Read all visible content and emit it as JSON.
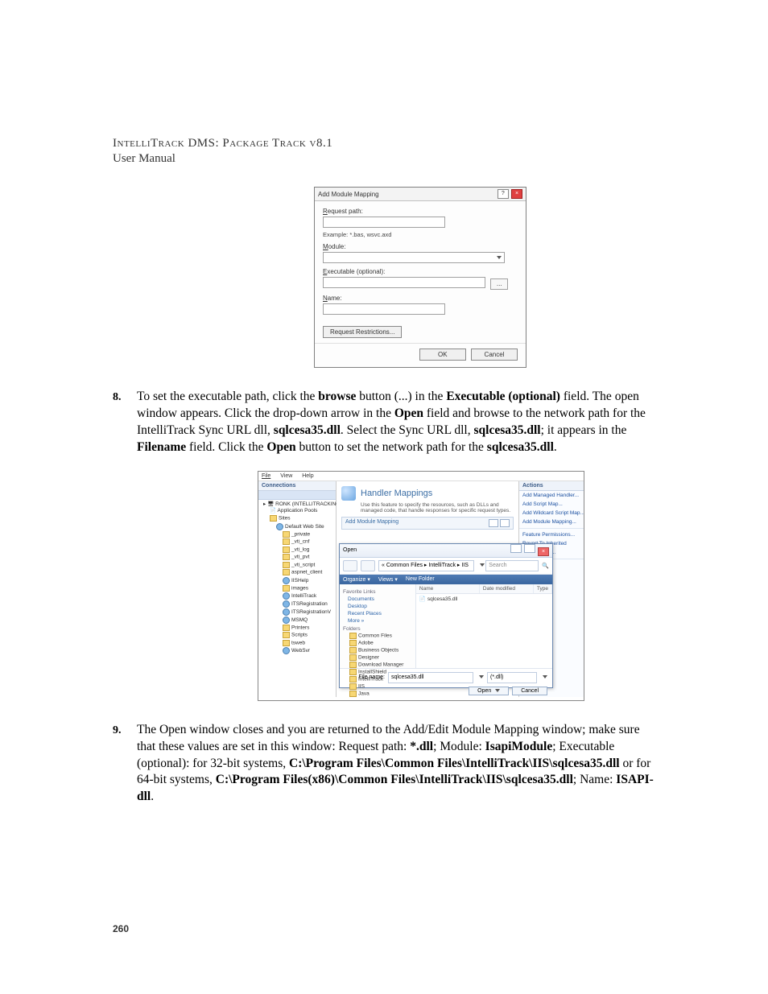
{
  "header": {
    "title": "IntelliTrack DMS: Package Track v8.1",
    "subtitle": "User Manual"
  },
  "dialog1": {
    "title": "Add Module Mapping",
    "request_path_label": "Request path:",
    "example_text": "Example: *.bas, wsvc.axd",
    "module_label": "Module:",
    "executable_label": "Executable (optional):",
    "browse_label": "...",
    "name_label": "Name:",
    "restrictions_label": "Request Restrictions...",
    "ok_label": "OK",
    "cancel_label": "Cancel"
  },
  "step8": {
    "number": "8.",
    "pre": "To set the executable path, click the ",
    "browse": "browse",
    "mid1": " button (...) in the ",
    "exec_opt": "Executable (optional)",
    "mid2": " field. The open window appears. Click the drop-down arrow in the ",
    "open1": "Open",
    "mid3": " field and browse to the network path for the IntelliTrack Sync URL dll, ",
    "dll1": "sqlcesa35.dll",
    "mid4": ". Select the Sync URL dll, ",
    "dll2": "sqlcesa35.dll",
    "mid5": "; it appears in the ",
    "filename": "Filename",
    "mid6": " field. Click the ",
    "open2": "Open",
    "mid7": " button to set the network path for the ",
    "dll3": "sqlcesa35.dll",
    "end": "."
  },
  "iis": {
    "menu": {
      "file": "File",
      "view": "View",
      "help": "Help"
    },
    "connections_label": "Connections",
    "actions_label": "Actions",
    "center_title": "Handler Mappings",
    "center_desc": "Use this feature to specify the resources, such as DLLs and managed code, that handle responses for specific request types.",
    "dlgbar_title": "Add Module Mapping",
    "tree": {
      "server": "RONK (INTELLITRACKINC\\ronk)",
      "app_pools": "Application Pools",
      "sites": "Sites",
      "default_site": "Default Web Site",
      "items": [
        "_private",
        "_vti_cnf",
        "_vti_log",
        "_vti_pvt",
        "_vti_script",
        "aspnet_client",
        "IISHelp",
        "images",
        "IntelliTrack",
        "ITSRegistration",
        "ITSRegistrationV",
        "MSMQ",
        "Printers",
        "Scripts",
        "tsweb",
        "WebSvr"
      ]
    },
    "actions": {
      "add_managed": "Add Managed Handler...",
      "add_script": "Add Script Map...",
      "add_wildcard": "Add Wildcard Script Map...",
      "add_module": "Add Module Mapping...",
      "edit_perm": "Feature Permissions...",
      "revert": "Revert To Inherited",
      "ordered": "Ordered List...",
      "help": "Help"
    }
  },
  "opendlg": {
    "title": "Open",
    "path": "« Common Files ▸ IntelliTrack ▸ IIS",
    "search_placeholder": "Search",
    "organize": "Organize ▾",
    "views": "Views ▾",
    "newfolder": "New Folder",
    "fav_header": "Favorite Links",
    "favs": [
      "Documents",
      "Desktop",
      "Recent Places",
      "More »"
    ],
    "folders_header": "Folders",
    "folders": [
      "Common Files",
      "Adobe",
      "Business Objects",
      "Designer",
      "Download Manager",
      "InstallShield",
      "IntelliTrack",
      "IIS",
      "Java"
    ],
    "col_name": "Name",
    "col_date": "Date modified",
    "col_type": "Type",
    "file_shown": "sqlcesa35.dll",
    "filename_label": "File name:",
    "filename_value": "sqlcesa35.dll",
    "filetype_value": "(*.dll)",
    "open_btn": "Open",
    "cancel_btn": "Cancel"
  },
  "step9": {
    "number": "9.",
    "pre": "The Open window closes and you are returned to the Add/Edit Module Mapping window; make sure that these values are set in this window: Request path: ",
    "rp": "*.dll",
    "mid1": "; Module: ",
    "mod": "IsapiModule",
    "mid2": "; Executable (optional): for 32-bit systems, ",
    "path32": "C:\\Program Files\\Common Files\\IntelliTrack\\IIS\\sqlcesa35.dll",
    "mid3": " or for 64-bit systems, ",
    "path64": "C:\\Program Files(x86)\\Common Files\\IntelliTrack\\IIS\\sqlcesa35.dll",
    "mid4": "; Name: ",
    "nm": "ISAPI-dll",
    "end": "."
  },
  "page_number": "260"
}
